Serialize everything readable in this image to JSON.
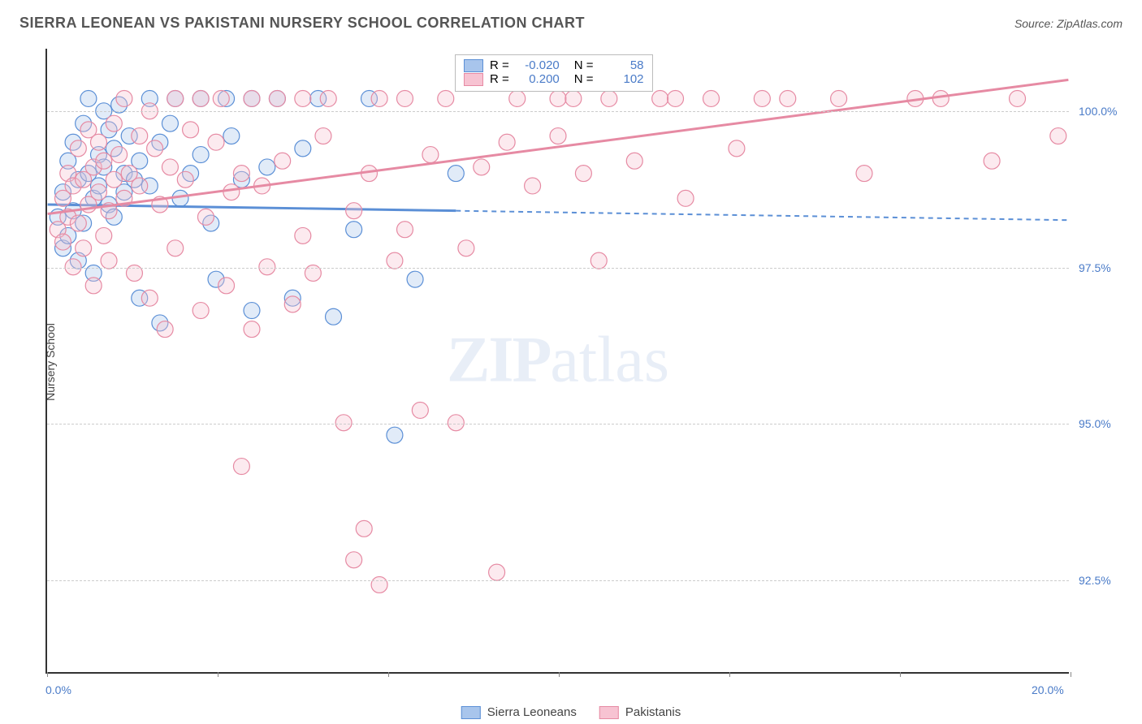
{
  "title": "SIERRA LEONEAN VS PAKISTANI NURSERY SCHOOL CORRELATION CHART",
  "source": "Source: ZipAtlas.com",
  "yaxis_label": "Nursery School",
  "watermark": {
    "part1": "ZIP",
    "part2": "atlas"
  },
  "colors": {
    "blue_stroke": "#5b8fd6",
    "blue_fill": "#a8c5ec",
    "pink_stroke": "#e68aa3",
    "pink_fill": "#f7c3d2",
    "axis_text": "#4a7bc8",
    "grid": "#cccccc",
    "axis_line": "#333333"
  },
  "chart": {
    "type": "scatter",
    "xlim": [
      0,
      20
    ],
    "ylim": [
      91,
      101
    ],
    "xticks": [
      0,
      20
    ],
    "xtick_labels": [
      "0.0%",
      "20.0%"
    ],
    "xtick_minor": [
      3.33,
      6.67,
      10.0,
      13.33,
      16.67
    ],
    "yticks": [
      92.5,
      95.0,
      97.5,
      100.0
    ],
    "ytick_labels": [
      "92.5%",
      "95.0%",
      "97.5%",
      "100.0%"
    ],
    "marker_radius": 10,
    "series": [
      {
        "name": "Sierra Leoneans",
        "color_key": "blue",
        "R": "-0.020",
        "N": "58",
        "trend": {
          "x1": 0,
          "y1": 98.5,
          "x2": 8,
          "y2": 98.4,
          "x2_ext": 20,
          "y2_ext": 98.25
        },
        "points": [
          [
            0.2,
            98.3
          ],
          [
            0.3,
            98.7
          ],
          [
            0.3,
            97.8
          ],
          [
            0.4,
            99.2
          ],
          [
            0.4,
            98.0
          ],
          [
            0.5,
            99.5
          ],
          [
            0.5,
            98.4
          ],
          [
            0.6,
            98.9
          ],
          [
            0.6,
            97.6
          ],
          [
            0.7,
            99.8
          ],
          [
            0.7,
            98.2
          ],
          [
            0.8,
            100.2
          ],
          [
            0.8,
            99.0
          ],
          [
            0.9,
            98.6
          ],
          [
            0.9,
            97.4
          ],
          [
            1.0,
            99.3
          ],
          [
            1.0,
            98.8
          ],
          [
            1.1,
            100.0
          ],
          [
            1.1,
            99.1
          ],
          [
            1.2,
            98.5
          ],
          [
            1.2,
            99.7
          ],
          [
            1.3,
            98.3
          ],
          [
            1.3,
            99.4
          ],
          [
            1.4,
            100.1
          ],
          [
            1.5,
            99.0
          ],
          [
            1.5,
            98.7
          ],
          [
            1.6,
            99.6
          ],
          [
            1.7,
            98.9
          ],
          [
            1.8,
            97.0
          ],
          [
            1.8,
            99.2
          ],
          [
            2.0,
            100.2
          ],
          [
            2.0,
            98.8
          ],
          [
            2.2,
            96.6
          ],
          [
            2.2,
            99.5
          ],
          [
            2.4,
            99.8
          ],
          [
            2.5,
            100.2
          ],
          [
            2.6,
            98.6
          ],
          [
            2.8,
            99.0
          ],
          [
            3.0,
            100.2
          ],
          [
            3.0,
            99.3
          ],
          [
            3.2,
            98.2
          ],
          [
            3.3,
            97.3
          ],
          [
            3.5,
            100.2
          ],
          [
            3.6,
            99.6
          ],
          [
            3.8,
            98.9
          ],
          [
            4.0,
            100.2
          ],
          [
            4.0,
            96.8
          ],
          [
            4.3,
            99.1
          ],
          [
            4.5,
            100.2
          ],
          [
            4.8,
            97.0
          ],
          [
            5.0,
            99.4
          ],
          [
            5.3,
            100.2
          ],
          [
            5.6,
            96.7
          ],
          [
            6.0,
            98.1
          ],
          [
            6.3,
            100.2
          ],
          [
            6.8,
            94.8
          ],
          [
            7.2,
            97.3
          ],
          [
            8.0,
            99.0
          ]
        ]
      },
      {
        "name": "Pakistanis",
        "color_key": "pink",
        "R": "0.200",
        "N": "102",
        "trend": {
          "x1": 0,
          "y1": 98.35,
          "x2": 20,
          "y2": 100.5
        },
        "points": [
          [
            0.2,
            98.1
          ],
          [
            0.3,
            98.6
          ],
          [
            0.3,
            97.9
          ],
          [
            0.4,
            99.0
          ],
          [
            0.4,
            98.3
          ],
          [
            0.5,
            98.8
          ],
          [
            0.5,
            97.5
          ],
          [
            0.6,
            99.4
          ],
          [
            0.6,
            98.2
          ],
          [
            0.7,
            98.9
          ],
          [
            0.7,
            97.8
          ],
          [
            0.8,
            99.7
          ],
          [
            0.8,
            98.5
          ],
          [
            0.9,
            99.1
          ],
          [
            0.9,
            97.2
          ],
          [
            1.0,
            98.7
          ],
          [
            1.0,
            99.5
          ],
          [
            1.1,
            98.0
          ],
          [
            1.1,
            99.2
          ],
          [
            1.2,
            98.4
          ],
          [
            1.2,
            97.6
          ],
          [
            1.3,
            99.8
          ],
          [
            1.3,
            98.9
          ],
          [
            1.4,
            99.3
          ],
          [
            1.5,
            100.2
          ],
          [
            1.5,
            98.6
          ],
          [
            1.6,
            99.0
          ],
          [
            1.7,
            97.4
          ],
          [
            1.8,
            99.6
          ],
          [
            1.8,
            98.8
          ],
          [
            2.0,
            100.0
          ],
          [
            2.0,
            97.0
          ],
          [
            2.1,
            99.4
          ],
          [
            2.2,
            98.5
          ],
          [
            2.3,
            96.5
          ],
          [
            2.4,
            99.1
          ],
          [
            2.5,
            100.2
          ],
          [
            2.5,
            97.8
          ],
          [
            2.7,
            98.9
          ],
          [
            2.8,
            99.7
          ],
          [
            3.0,
            100.2
          ],
          [
            3.0,
            96.8
          ],
          [
            3.1,
            98.3
          ],
          [
            3.3,
            99.5
          ],
          [
            3.4,
            100.2
          ],
          [
            3.5,
            97.2
          ],
          [
            3.6,
            98.7
          ],
          [
            3.8,
            94.3
          ],
          [
            3.8,
            99.0
          ],
          [
            4.0,
            100.2
          ],
          [
            4.0,
            96.5
          ],
          [
            4.2,
            98.8
          ],
          [
            4.3,
            97.5
          ],
          [
            4.5,
            100.2
          ],
          [
            4.6,
            99.2
          ],
          [
            4.8,
            96.9
          ],
          [
            5.0,
            100.2
          ],
          [
            5.0,
            98.0
          ],
          [
            5.2,
            97.4
          ],
          [
            5.4,
            99.6
          ],
          [
            5.5,
            100.2
          ],
          [
            5.8,
            95.0
          ],
          [
            6.0,
            98.4
          ],
          [
            6.0,
            92.8
          ],
          [
            6.2,
            93.3
          ],
          [
            6.3,
            99.0
          ],
          [
            6.5,
            100.2
          ],
          [
            6.5,
            92.4
          ],
          [
            6.8,
            97.6
          ],
          [
            7.0,
            100.2
          ],
          [
            7.0,
            98.1
          ],
          [
            7.3,
            95.2
          ],
          [
            7.5,
            99.3
          ],
          [
            7.8,
            100.2
          ],
          [
            8.0,
            95.0
          ],
          [
            8.2,
            97.8
          ],
          [
            8.5,
            99.1
          ],
          [
            8.8,
            92.6
          ],
          [
            9.0,
            99.5
          ],
          [
            9.2,
            100.2
          ],
          [
            9.5,
            98.8
          ],
          [
            10.0,
            100.2
          ],
          [
            10.0,
            99.6
          ],
          [
            10.3,
            100.2
          ],
          [
            10.5,
            99.0
          ],
          [
            10.8,
            97.6
          ],
          [
            11.0,
            100.2
          ],
          [
            11.5,
            99.2
          ],
          [
            12.0,
            100.2
          ],
          [
            12.3,
            100.2
          ],
          [
            12.5,
            98.6
          ],
          [
            13.0,
            100.2
          ],
          [
            13.5,
            99.4
          ],
          [
            14.0,
            100.2
          ],
          [
            14.5,
            100.2
          ],
          [
            15.5,
            100.2
          ],
          [
            16.0,
            99.0
          ],
          [
            17.0,
            100.2
          ],
          [
            17.5,
            100.2
          ],
          [
            18.5,
            99.2
          ],
          [
            19.0,
            100.2
          ],
          [
            19.8,
            99.6
          ]
        ]
      }
    ]
  },
  "legend_inset": {
    "R_label": "R =",
    "N_label": "N ="
  },
  "bottom_legend": {
    "items": [
      "Sierra Leoneans",
      "Pakistanis"
    ]
  }
}
